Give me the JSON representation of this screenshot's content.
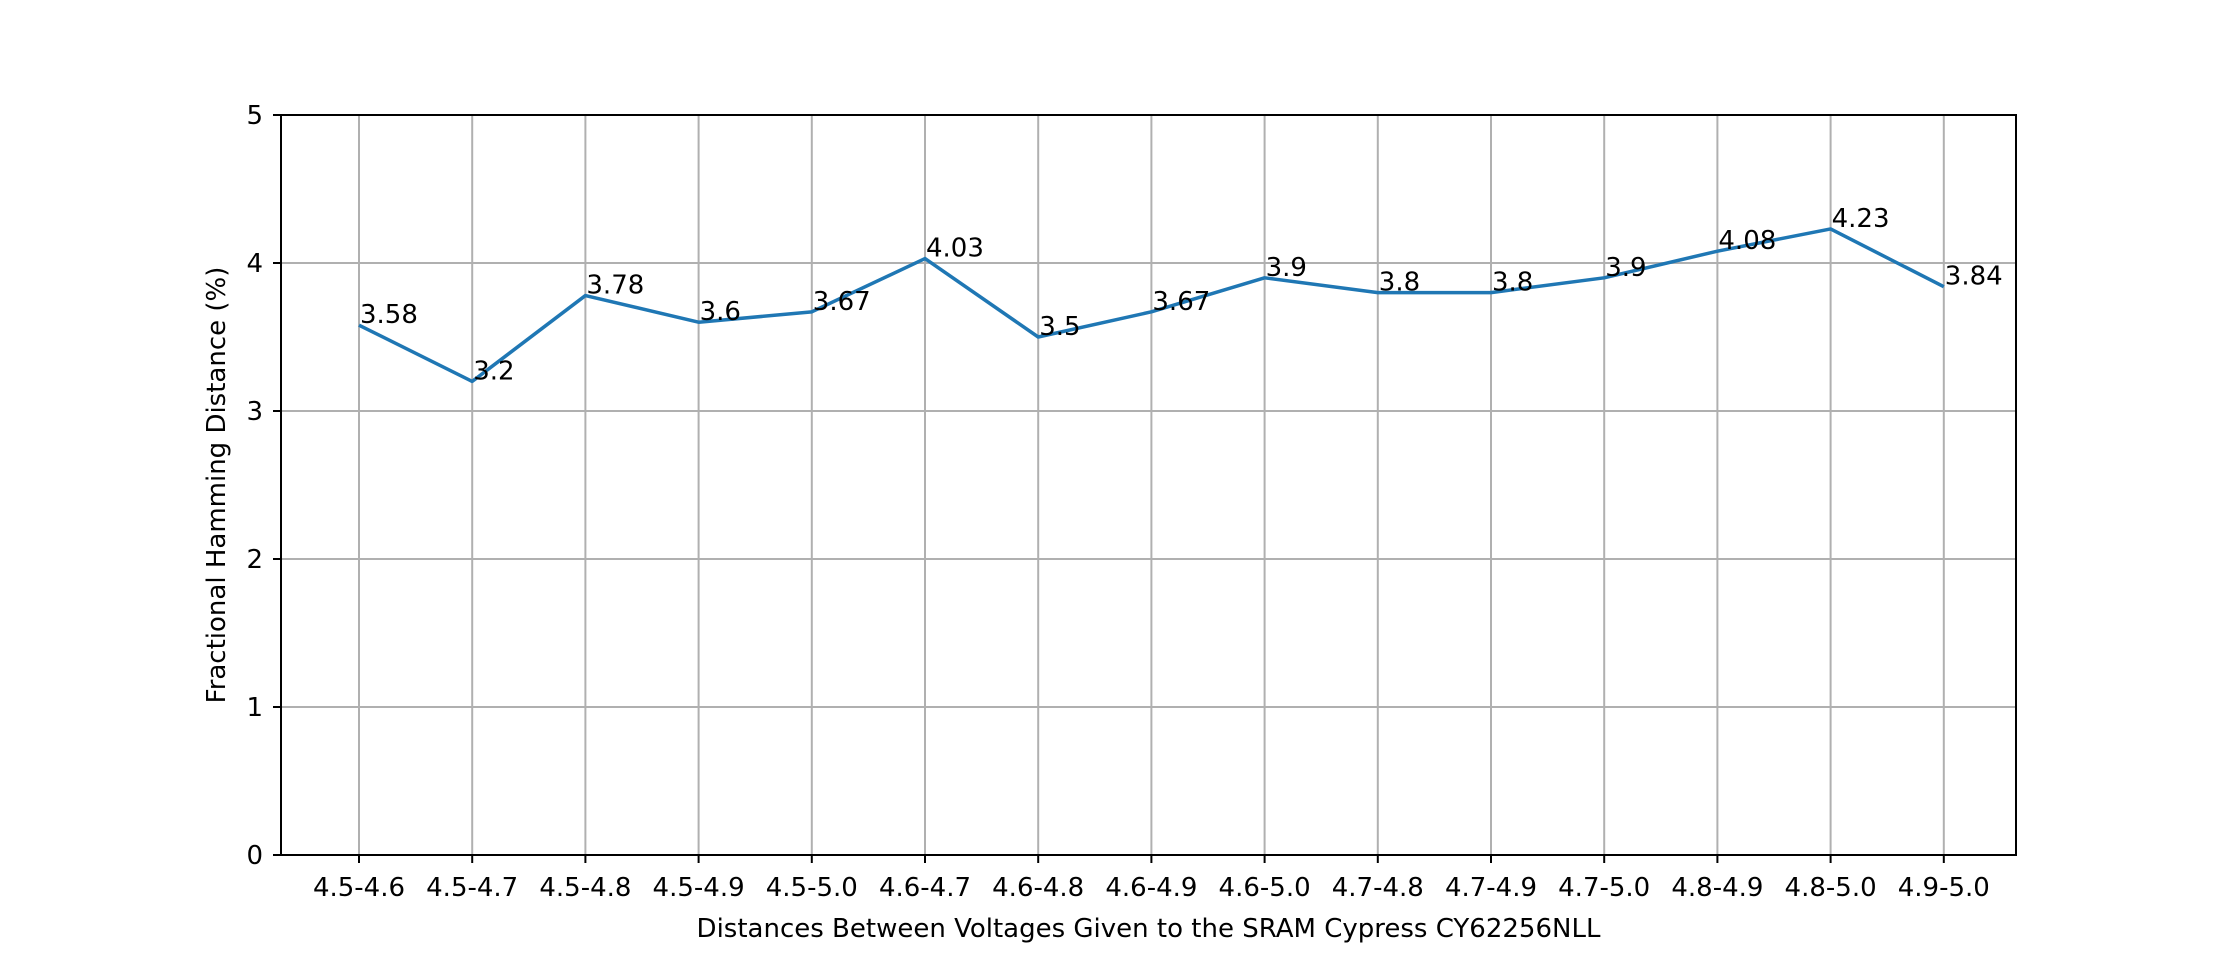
{
  "chart_data": {
    "type": "line",
    "title": "",
    "xlabel": "Distances Between Voltages Given to the SRAM Cypress CY62256NLL",
    "ylabel": "Fractional Hamming Distance (%)",
    "ylim": [
      0,
      5
    ],
    "yticks": [
      "0",
      "1",
      "2",
      "3",
      "4",
      "5"
    ],
    "grid": true,
    "categories": [
      "4.5-4.6",
      "4.5-4.7",
      "4.5-4.8",
      "4.5-4.9",
      "4.5-5.0",
      "4.6-4.7",
      "4.6-4.8",
      "4.6-4.9",
      "4.6-5.0",
      "4.7-4.8",
      "4.7-4.9",
      "4.7-5.0",
      "4.8-4.9",
      "4.8-5.0",
      "4.9-5.0"
    ],
    "series": [
      {
        "name": "Fractional Hamming Distance",
        "color": "#1f77b4",
        "values": [
          3.58,
          3.2,
          3.78,
          3.6,
          3.67,
          4.03,
          3.5,
          3.67,
          3.9,
          3.8,
          3.8,
          3.9,
          4.08,
          4.23,
          3.84
        ],
        "labels": [
          "3.58",
          "3.2",
          "3.78",
          "3.6",
          "3.67",
          "4.03",
          "3.5",
          "3.67",
          "3.9",
          "3.8",
          "3.8",
          "3.9",
          "4.08",
          "4.23",
          "3.84"
        ]
      }
    ]
  }
}
